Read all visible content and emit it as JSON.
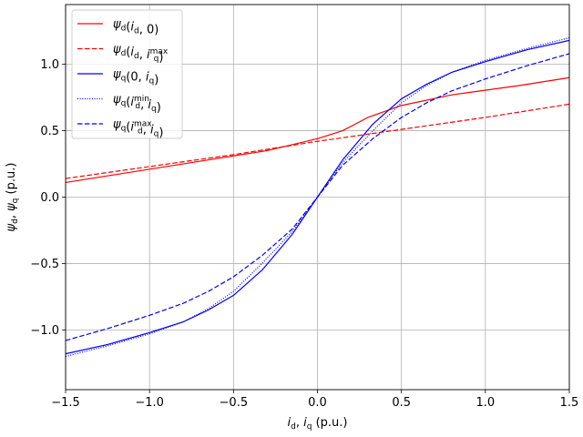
{
  "chart_data": {
    "type": "line",
    "xlabel": "i_d, i_q (p.u.)",
    "ylabel": "ψ_d, ψ_q (p.u.)",
    "xlim": [
      -1.5,
      1.5
    ],
    "ylim": [
      -1.45,
      1.45
    ],
    "xticks": [
      -1.5,
      -1.0,
      -0.5,
      0.0,
      0.5,
      1.0,
      1.5
    ],
    "xtick_labels": [
      "−1.5",
      "−1.0",
      "−0.5",
      "0.0",
      "0.5",
      "1.0",
      "1.5"
    ],
    "yticks": [
      -1.0,
      -0.5,
      0.0,
      0.5,
      1.0
    ],
    "ytick_labels": [
      "−1.0",
      "−0.5",
      "0.0",
      "0.5",
      "1.0"
    ],
    "grid": true,
    "legend_position": "top-left",
    "series": [
      {
        "name": "ψ_d(i_d, 0)",
        "color": "#ff0000",
        "dash": "solid",
        "x": [
          -1.5,
          -1.2,
          -0.9,
          -0.6,
          -0.3,
          0.0,
          0.15,
          0.3,
          0.5,
          0.8,
          1.2,
          1.5
        ],
        "y": [
          0.11,
          0.17,
          0.23,
          0.29,
          0.35,
          0.44,
          0.5,
          0.6,
          0.69,
          0.77,
          0.84,
          0.9
        ]
      },
      {
        "name": "ψ_d(i_d, i_q^max)",
        "color": "#ff0000",
        "dash": "dashed",
        "x": [
          -1.5,
          -1.0,
          -0.5,
          0.0,
          0.5,
          1.0,
          1.5
        ],
        "y": [
          0.14,
          0.23,
          0.32,
          0.42,
          0.51,
          0.6,
          0.7
        ]
      },
      {
        "name": "ψ_q(0, i_q)",
        "color": "#0000ff",
        "dash": "solid",
        "x": [
          -1.5,
          -1.25,
          -1.0,
          -0.8,
          -0.65,
          -0.5,
          -0.33,
          -0.15,
          0.0,
          0.15,
          0.33,
          0.5,
          0.65,
          0.8,
          1.0,
          1.25,
          1.5
        ],
        "y": [
          -1.18,
          -1.11,
          -1.02,
          -0.94,
          -0.85,
          -0.74,
          -0.55,
          -0.28,
          0.0,
          0.28,
          0.55,
          0.74,
          0.85,
          0.94,
          1.02,
          1.11,
          1.18
        ]
      },
      {
        "name": "ψ_q(i_d^min, i_q)",
        "color": "#0000ff",
        "dash": "dotted",
        "x": [
          -1.5,
          -1.25,
          -1.0,
          -0.8,
          -0.65,
          -0.5,
          -0.33,
          -0.15,
          0.0,
          0.15,
          0.33,
          0.5,
          0.65,
          0.8,
          1.0,
          1.25,
          1.5
        ],
        "y": [
          -1.2,
          -1.12,
          -1.03,
          -0.94,
          -0.84,
          -0.71,
          -0.5,
          -0.26,
          0.0,
          0.26,
          0.5,
          0.71,
          0.84,
          0.94,
          1.03,
          1.12,
          1.2
        ]
      },
      {
        "name": "ψ_q(i_d^max, i_q)",
        "color": "#0000ff",
        "dash": "dashed",
        "x": [
          -1.5,
          -1.25,
          -1.0,
          -0.8,
          -0.65,
          -0.5,
          -0.33,
          -0.15,
          0.0,
          0.15,
          0.33,
          0.5,
          0.65,
          0.8,
          1.0,
          1.25,
          1.5
        ],
        "y": [
          -1.08,
          -0.99,
          -0.89,
          -0.8,
          -0.71,
          -0.6,
          -0.44,
          -0.24,
          0.0,
          0.24,
          0.44,
          0.6,
          0.71,
          0.8,
          0.89,
          0.99,
          1.08
        ]
      }
    ]
  }
}
